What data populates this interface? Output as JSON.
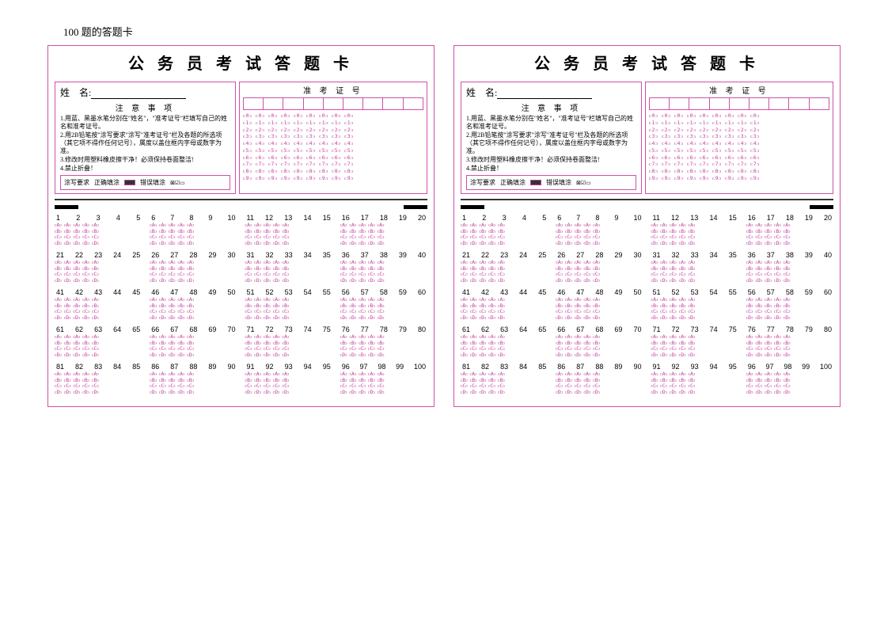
{
  "page_label": "100 题的答题卡",
  "card": {
    "title": "公 务 员 考 试 答 题 卡",
    "name_label": "姓　名:",
    "notice_title": "注 意 事 项",
    "notices": [
      "1.用蓝、黑墨水笔分别在\"姓名\"，\"准考证号\"栏填写自己的姓名和准考证号。",
      "2.用2B铅笔按\"涂写要求\"涂写\"准考证号\"栏及各题的所选项（其它项不得作任何记号），属度以盖住框内字母或数字为准。",
      "3.修改时用塑料橡皮擦干净！必须保持卷面整洁!",
      "4.禁止折叠！"
    ],
    "fill_req_label": "涂写要求",
    "fill_correct": "正确填涂",
    "fill_wrong": "错误填涂",
    "exam_id_title": "准 考 证 号",
    "exam_id_cols": 9,
    "digits": [
      "0",
      "1",
      "2",
      "3",
      "4",
      "5",
      "6",
      "7",
      "8",
      "9"
    ],
    "options": [
      "A",
      "B",
      "C",
      "D"
    ],
    "question_total": 100
  },
  "colors": {
    "accent": "#d050a8",
    "bubble": "#c04098",
    "text": "#000000",
    "bg": "#ffffff"
  }
}
